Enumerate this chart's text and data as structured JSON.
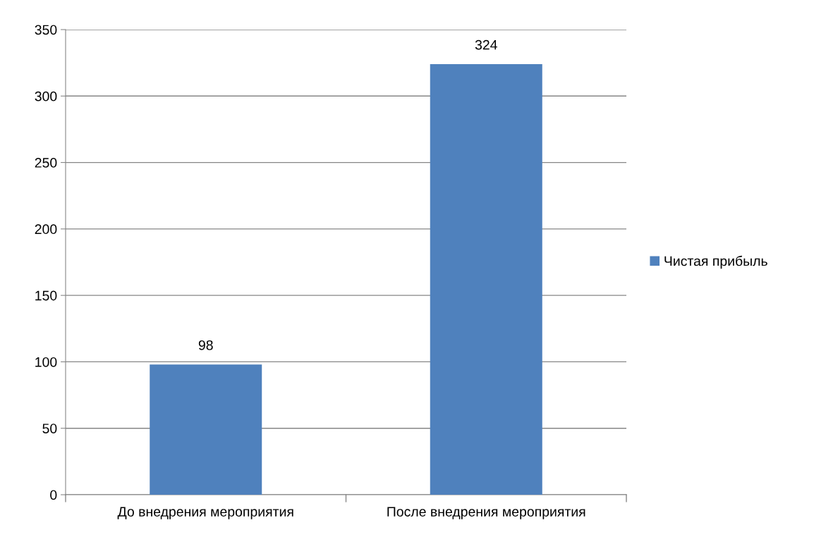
{
  "chart_data": {
    "type": "bar",
    "categories": [
      "До внедрения мероприятия",
      "После внедрения мероприятия"
    ],
    "series": [
      {
        "name": "Чистая прибыль",
        "color": "#4f81bd",
        "values": [
          98,
          324
        ]
      }
    ],
    "ylim": [
      0,
      350
    ],
    "yticks": [
      0,
      50,
      100,
      150,
      200,
      250,
      300,
      350
    ],
    "grid": "y",
    "legend": "right",
    "data_labels": true
  }
}
